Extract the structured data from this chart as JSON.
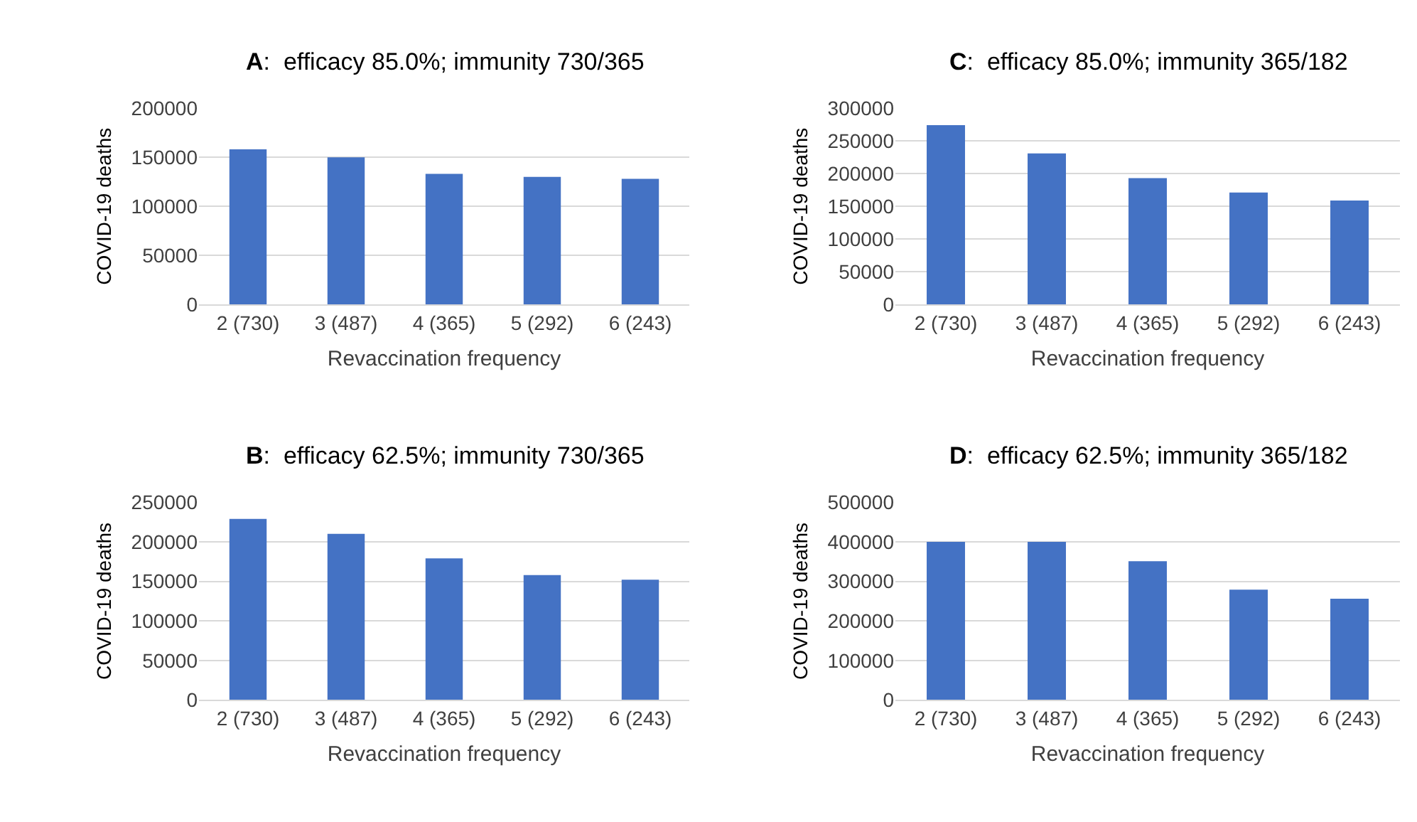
{
  "chart_data": [
    {
      "type": "bar",
      "title": "A:  efficacy 85.0%; immunity 730/365",
      "xlabel": "Revaccination frequency",
      "ylabel": "COVID-19 deaths",
      "categories": [
        "2 (730)",
        "3 (487)",
        "4 (365)",
        "5 (292)",
        "6 (243)"
      ],
      "values": [
        158000,
        150000,
        133000,
        130000,
        128000
      ],
      "color": "#4472c4",
      "ylim": [
        0,
        200000
      ],
      "yticks": [
        0,
        50000,
        100000,
        150000,
        200000
      ],
      "grid": "y"
    },
    {
      "type": "bar",
      "title": "C:  efficacy 85.0%; immunity 365/182",
      "xlabel": "Revaccination frequency",
      "ylabel": "COVID-19 deaths",
      "categories": [
        "2 (730)",
        "3 (487)",
        "4 (365)",
        "5 (292)",
        "6 (243)"
      ],
      "values": [
        274000,
        231000,
        193000,
        171000,
        159000
      ],
      "color": "#4472c4",
      "ylim": [
        0,
        300000
      ],
      "yticks": [
        0,
        50000,
        100000,
        150000,
        200000,
        250000,
        300000
      ],
      "grid": "y"
    },
    {
      "type": "bar",
      "title": "B:  efficacy 62.5%; immunity 730/365",
      "xlabel": "Revaccination frequency",
      "ylabel": "COVID-19 deaths",
      "categories": [
        "2 (730)",
        "3 (487)",
        "4 (365)",
        "5 (292)",
        "6 (243)"
      ],
      "values": [
        229000,
        210000,
        179000,
        158000,
        152000
      ],
      "color": "#4472c4",
      "ylim": [
        0,
        250000
      ],
      "yticks": [
        0,
        50000,
        100000,
        150000,
        200000,
        250000
      ],
      "grid": "y"
    },
    {
      "type": "bar",
      "title": "D:  efficacy 62.5%; immunity 365/182",
      "xlabel": "Revaccination frequency",
      "ylabel": "COVID-19 deaths",
      "categories": [
        "2 (730)",
        "3 (487)",
        "4 (365)",
        "5 (292)",
        "6 (243)"
      ],
      "values": [
        400000,
        400000,
        351000,
        279000,
        256000
      ],
      "color": "#4472c4",
      "ylim": [
        0,
        500000
      ],
      "yticks": [
        0,
        100000,
        200000,
        300000,
        400000,
        500000
      ],
      "grid": "y"
    }
  ]
}
